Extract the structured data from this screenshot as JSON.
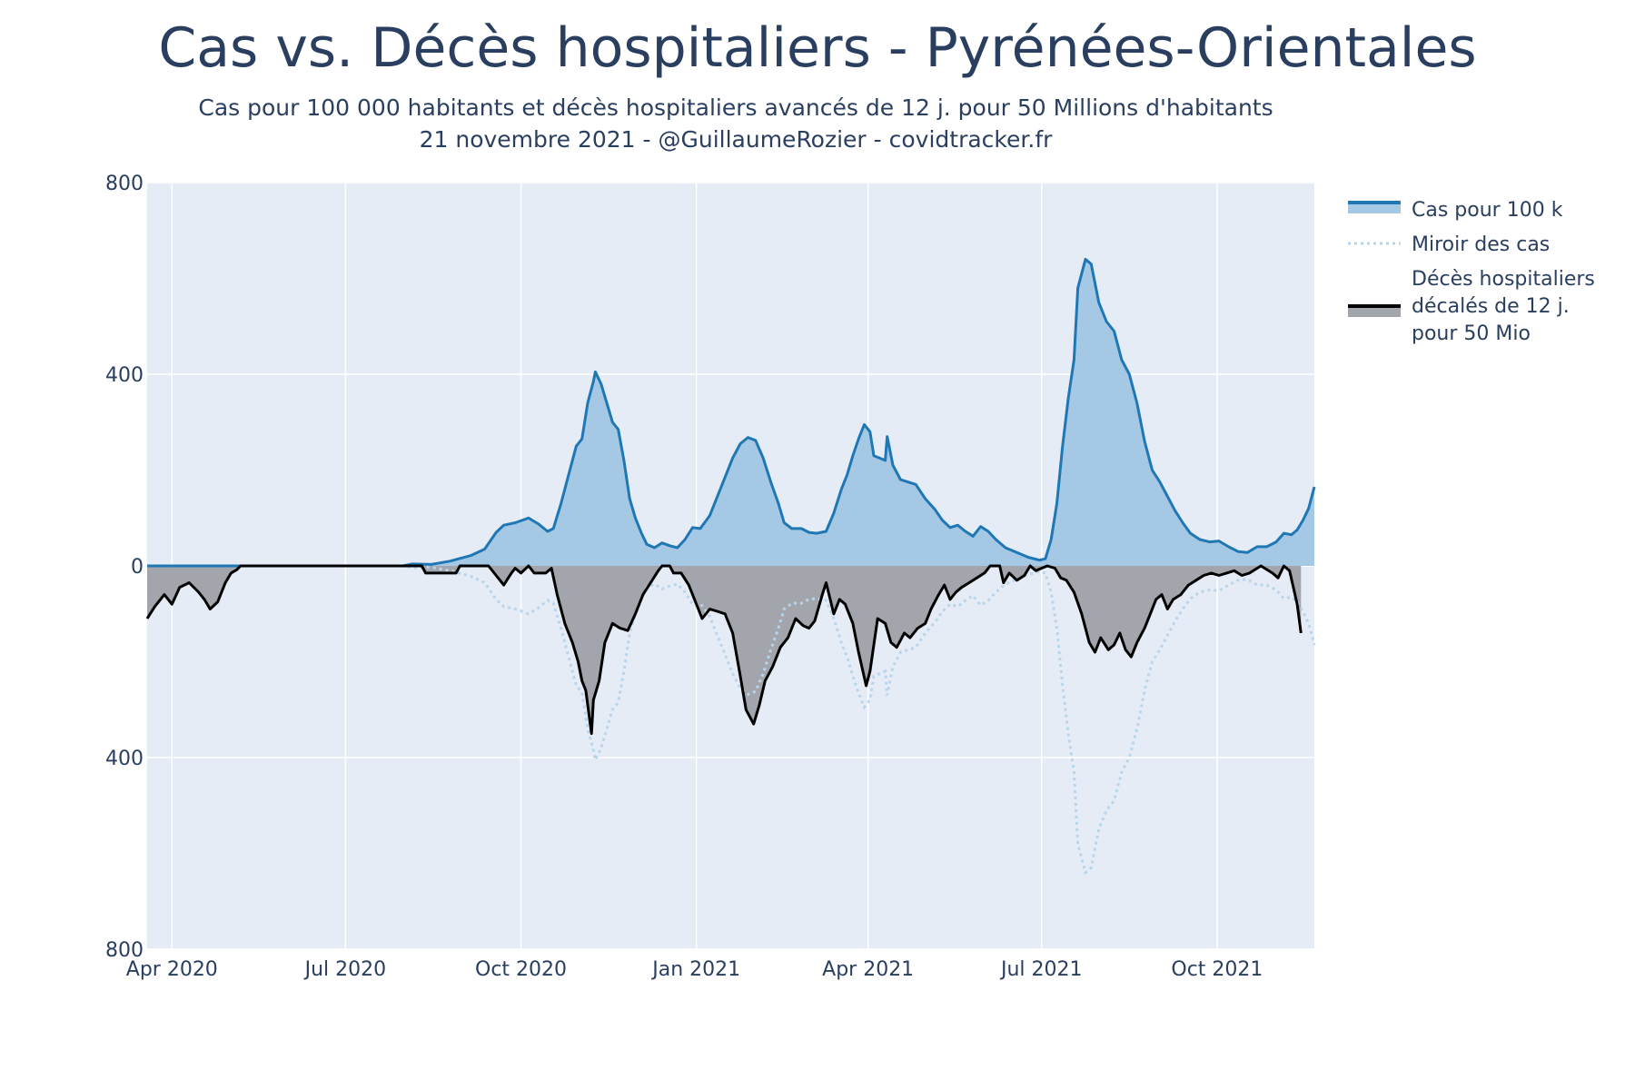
{
  "chart_data": {
    "type": "area",
    "title": "Cas vs. Décès hospitaliers - Pyrénées-Orientales",
    "subtitle": "Cas pour 100 000 habitants et décès hospitaliers avancés de 12 j. pour 50 Millions d'habitants",
    "subtitle2": "21 novembre 2021 - @GuillaumeRozier - covidtracker.fr",
    "xlabel": "",
    "ylabel": "",
    "ylim": [
      -800,
      800
    ],
    "y_ticks": [
      800,
      400,
      0,
      -400,
      -800
    ],
    "y_tick_labels": [
      "800",
      "400",
      "0",
      "400",
      "800"
    ],
    "x_ticks": [
      "2020-04-01",
      "2020-07-01",
      "2020-10-01",
      "2021-01-01",
      "2021-04-01",
      "2021-07-01",
      "2021-10-01"
    ],
    "x_tick_labels": [
      "Apr 2020",
      "Jul 2020",
      "Oct 2020",
      "Jan 2021",
      "Apr 2021",
      "Jul 2021",
      "Oct 2021"
    ],
    "xlim": [
      "2020-03-19",
      "2021-11-21"
    ],
    "legend_position": "right",
    "grid": true,
    "colors": {
      "cases_line": "#1f77b4",
      "cases_fill": "#a5c8e4",
      "mirror_line": "#b8d5ec",
      "deaths_line": "#000000",
      "deaths_fill": "#a2a5ab",
      "plot_bg": "#e5ecf6",
      "grid": "#ffffff"
    },
    "series": [
      {
        "name": "Cas pour 100 k",
        "style": "line+fill",
        "points": [
          [
            "2020-03-19",
            0
          ],
          [
            "2020-07-31",
            0
          ],
          [
            "2020-08-05",
            4
          ],
          [
            "2020-08-15",
            3
          ],
          [
            "2020-08-25",
            10
          ],
          [
            "2020-09-05",
            22
          ],
          [
            "2020-09-12",
            35
          ],
          [
            "2020-09-18",
            70
          ],
          [
            "2020-09-22",
            85
          ],
          [
            "2020-09-28",
            90
          ],
          [
            "2020-10-05",
            100
          ],
          [
            "2020-10-10",
            88
          ],
          [
            "2020-10-15",
            72
          ],
          [
            "2020-10-18",
            78
          ],
          [
            "2020-10-22",
            130
          ],
          [
            "2020-10-26",
            190
          ],
          [
            "2020-10-30",
            250
          ],
          [
            "2020-11-02",
            265
          ],
          [
            "2020-11-05",
            340
          ],
          [
            "2020-11-08",
            385
          ],
          [
            "2020-11-09",
            405
          ],
          [
            "2020-11-12",
            380
          ],
          [
            "2020-11-15",
            340
          ],
          [
            "2020-11-18",
            300
          ],
          [
            "2020-11-21",
            285
          ],
          [
            "2020-11-24",
            220
          ],
          [
            "2020-11-27",
            140
          ],
          [
            "2020-11-30",
            100
          ],
          [
            "2020-12-03",
            70
          ],
          [
            "2020-12-06",
            45
          ],
          [
            "2020-12-10",
            38
          ],
          [
            "2020-12-14",
            48
          ],
          [
            "2020-12-18",
            42
          ],
          [
            "2020-12-22",
            38
          ],
          [
            "2020-12-26",
            55
          ],
          [
            "2020-12-30",
            80
          ],
          [
            "2021-01-03",
            78
          ],
          [
            "2021-01-08",
            105
          ],
          [
            "2021-01-12",
            145
          ],
          [
            "2021-01-16",
            185
          ],
          [
            "2021-01-20",
            225
          ],
          [
            "2021-01-24",
            255
          ],
          [
            "2021-01-28",
            268
          ],
          [
            "2021-02-01",
            262
          ],
          [
            "2021-02-05",
            225
          ],
          [
            "2021-02-09",
            175
          ],
          [
            "2021-02-13",
            130
          ],
          [
            "2021-02-16",
            90
          ],
          [
            "2021-02-20",
            78
          ],
          [
            "2021-02-25",
            78
          ],
          [
            "2021-03-01",
            70
          ],
          [
            "2021-03-05",
            68
          ],
          [
            "2021-03-10",
            72
          ],
          [
            "2021-03-14",
            110
          ],
          [
            "2021-03-18",
            160
          ],
          [
            "2021-03-21",
            190
          ],
          [
            "2021-03-24",
            230
          ],
          [
            "2021-03-27",
            265
          ],
          [
            "2021-03-30",
            295
          ],
          [
            "2021-04-02",
            280
          ],
          [
            "2021-04-04",
            230
          ],
          [
            "2021-04-07",
            225
          ],
          [
            "2021-04-10",
            220
          ],
          [
            "2021-04-11",
            270
          ],
          [
            "2021-04-14",
            210
          ],
          [
            "2021-04-18",
            180
          ],
          [
            "2021-04-22",
            175
          ],
          [
            "2021-04-26",
            170
          ],
          [
            "2021-05-01",
            140
          ],
          [
            "2021-05-06",
            118
          ],
          [
            "2021-05-10",
            95
          ],
          [
            "2021-05-14",
            80
          ],
          [
            "2021-05-18",
            85
          ],
          [
            "2021-05-22",
            72
          ],
          [
            "2021-05-26",
            62
          ],
          [
            "2021-05-30",
            82
          ],
          [
            "2021-06-03",
            72
          ],
          [
            "2021-06-07",
            55
          ],
          [
            "2021-06-12",
            38
          ],
          [
            "2021-06-18",
            28
          ],
          [
            "2021-06-24",
            18
          ],
          [
            "2021-06-30",
            12
          ],
          [
            "2021-07-03",
            15
          ],
          [
            "2021-07-06",
            55
          ],
          [
            "2021-07-09",
            130
          ],
          [
            "2021-07-12",
            250
          ],
          [
            "2021-07-15",
            350
          ],
          [
            "2021-07-18",
            430
          ],
          [
            "2021-07-20",
            580
          ],
          [
            "2021-07-24",
            640
          ],
          [
            "2021-07-27",
            630
          ],
          [
            "2021-07-31",
            550
          ],
          [
            "2021-08-04",
            510
          ],
          [
            "2021-08-08",
            490
          ],
          [
            "2021-08-12",
            430
          ],
          [
            "2021-08-16",
            400
          ],
          [
            "2021-08-20",
            340
          ],
          [
            "2021-08-24",
            260
          ],
          [
            "2021-08-28",
            200
          ],
          [
            "2021-09-01",
            175
          ],
          [
            "2021-09-05",
            145
          ],
          [
            "2021-09-09",
            115
          ],
          [
            "2021-09-13",
            90
          ],
          [
            "2021-09-17",
            68
          ],
          [
            "2021-09-22",
            55
          ],
          [
            "2021-09-27",
            50
          ],
          [
            "2021-10-02",
            52
          ],
          [
            "2021-10-07",
            40
          ],
          [
            "2021-10-12",
            30
          ],
          [
            "2021-10-17",
            28
          ],
          [
            "2021-10-22",
            40
          ],
          [
            "2021-10-27",
            40
          ],
          [
            "2021-11-01",
            50
          ],
          [
            "2021-11-05",
            68
          ],
          [
            "2021-11-09",
            65
          ],
          [
            "2021-11-12",
            75
          ],
          [
            "2021-11-15",
            95
          ],
          [
            "2021-11-18",
            120
          ],
          [
            "2021-11-21",
            165
          ]
        ]
      },
      {
        "name": "Miroir des cas",
        "style": "dotted",
        "mirror_of": "Cas pour 100 k"
      },
      {
        "name": "Décès hospitaliers\ndécalés de 12 j.\npour 50 Mio",
        "style": "line+fill",
        "points": [
          [
            "2020-03-19",
            -110
          ],
          [
            "2020-03-23",
            -85
          ],
          [
            "2020-03-28",
            -60
          ],
          [
            "2020-04-01",
            -80
          ],
          [
            "2020-04-05",
            -45
          ],
          [
            "2020-04-10",
            -35
          ],
          [
            "2020-04-15",
            -55
          ],
          [
            "2020-04-18",
            -70
          ],
          [
            "2020-04-21",
            -90
          ],
          [
            "2020-04-25",
            -75
          ],
          [
            "2020-04-29",
            -35
          ],
          [
            "2020-05-02",
            -15
          ],
          [
            "2020-05-05",
            -8
          ],
          [
            "2020-05-07",
            0
          ],
          [
            "2020-08-10",
            0
          ],
          [
            "2020-08-12",
            -15
          ],
          [
            "2020-08-28",
            -15
          ],
          [
            "2020-08-30",
            0
          ],
          [
            "2020-09-14",
            0
          ],
          [
            "2020-09-18",
            -20
          ],
          [
            "2020-09-22",
            -40
          ],
          [
            "2020-09-26",
            -15
          ],
          [
            "2020-09-28",
            -5
          ],
          [
            "2020-10-01",
            -15
          ],
          [
            "2020-10-05",
            0
          ],
          [
            "2020-10-08",
            -15
          ],
          [
            "2020-10-14",
            -15
          ],
          [
            "2020-10-17",
            -5
          ],
          [
            "2020-10-20",
            -60
          ],
          [
            "2020-10-24",
            -120
          ],
          [
            "2020-10-28",
            -160
          ],
          [
            "2020-10-31",
            -200
          ],
          [
            "2020-11-02",
            -240
          ],
          [
            "2020-11-04",
            -260
          ],
          [
            "2020-11-07",
            -350
          ],
          [
            "2020-11-08",
            -280
          ],
          [
            "2020-11-11",
            -240
          ],
          [
            "2020-11-14",
            -160
          ],
          [
            "2020-11-18",
            -120
          ],
          [
            "2020-11-22",
            -130
          ],
          [
            "2020-11-26",
            -135
          ],
          [
            "2020-11-30",
            -100
          ],
          [
            "2020-12-04",
            -60
          ],
          [
            "2020-12-08",
            -35
          ],
          [
            "2020-12-12",
            -10
          ],
          [
            "2020-12-14",
            0
          ],
          [
            "2020-12-18",
            0
          ],
          [
            "2020-12-20",
            -15
          ],
          [
            "2020-12-24",
            -15
          ],
          [
            "2020-12-28",
            -40
          ],
          [
            "2021-01-01",
            -80
          ],
          [
            "2021-01-04",
            -110
          ],
          [
            "2021-01-08",
            -90
          ],
          [
            "2021-01-12",
            -95
          ],
          [
            "2021-01-16",
            -100
          ],
          [
            "2021-01-20",
            -140
          ],
          [
            "2021-01-24",
            -230
          ],
          [
            "2021-01-27",
            -300
          ],
          [
            "2021-01-31",
            -330
          ],
          [
            "2021-02-03",
            -290
          ],
          [
            "2021-02-06",
            -240
          ],
          [
            "2021-02-10",
            -210
          ],
          [
            "2021-02-14",
            -170
          ],
          [
            "2021-02-18",
            -150
          ],
          [
            "2021-02-22",
            -110
          ],
          [
            "2021-02-26",
            -125
          ],
          [
            "2021-03-01",
            -130
          ],
          [
            "2021-03-04",
            -115
          ],
          [
            "2021-03-08",
            -60
          ],
          [
            "2021-03-10",
            -35
          ],
          [
            "2021-03-14",
            -100
          ],
          [
            "2021-03-17",
            -70
          ],
          [
            "2021-03-20",
            -80
          ],
          [
            "2021-03-24",
            -120
          ],
          [
            "2021-03-27",
            -180
          ],
          [
            "2021-03-31",
            -250
          ],
          [
            "2021-04-02",
            -220
          ],
          [
            "2021-04-06",
            -110
          ],
          [
            "2021-04-10",
            -120
          ],
          [
            "2021-04-13",
            -160
          ],
          [
            "2021-04-16",
            -170
          ],
          [
            "2021-04-20",
            -140
          ],
          [
            "2021-04-23",
            -150
          ],
          [
            "2021-04-27",
            -130
          ],
          [
            "2021-05-01",
            -120
          ],
          [
            "2021-05-04",
            -90
          ],
          [
            "2021-05-08",
            -60
          ],
          [
            "2021-05-11",
            -40
          ],
          [
            "2021-05-14",
            -70
          ],
          [
            "2021-05-17",
            -55
          ],
          [
            "2021-05-20",
            -45
          ],
          [
            "2021-05-24",
            -35
          ],
          [
            "2021-05-28",
            -25
          ],
          [
            "2021-06-01",
            -15
          ],
          [
            "2021-06-04",
            0
          ],
          [
            "2021-06-09",
            0
          ],
          [
            "2021-06-11",
            -35
          ],
          [
            "2021-06-14",
            -15
          ],
          [
            "2021-06-18",
            -30
          ],
          [
            "2021-06-22",
            -20
          ],
          [
            "2021-06-25",
            0
          ],
          [
            "2021-06-28",
            -10
          ],
          [
            "2021-07-01",
            -5
          ],
          [
            "2021-07-04",
            0
          ],
          [
            "2021-07-08",
            -5
          ],
          [
            "2021-07-11",
            -25
          ],
          [
            "2021-07-14",
            -30
          ],
          [
            "2021-07-18",
            -55
          ],
          [
            "2021-07-22",
            -100
          ],
          [
            "2021-07-26",
            -160
          ],
          [
            "2021-07-29",
            -180
          ],
          [
            "2021-08-01",
            -150
          ],
          [
            "2021-08-05",
            -175
          ],
          [
            "2021-08-08",
            -165
          ],
          [
            "2021-08-11",
            -140
          ],
          [
            "2021-08-14",
            -175
          ],
          [
            "2021-08-17",
            -190
          ],
          [
            "2021-08-20",
            -160
          ],
          [
            "2021-08-24",
            -130
          ],
          [
            "2021-08-27",
            -100
          ],
          [
            "2021-08-30",
            -70
          ],
          [
            "2021-09-02",
            -60
          ],
          [
            "2021-09-05",
            -90
          ],
          [
            "2021-09-08",
            -70
          ],
          [
            "2021-09-12",
            -60
          ],
          [
            "2021-09-16",
            -40
          ],
          [
            "2021-09-20",
            -30
          ],
          [
            "2021-09-24",
            -20
          ],
          [
            "2021-09-28",
            -15
          ],
          [
            "2021-10-02",
            -20
          ],
          [
            "2021-10-06",
            -15
          ],
          [
            "2021-10-10",
            -10
          ],
          [
            "2021-10-14",
            -20
          ],
          [
            "2021-10-18",
            -15
          ],
          [
            "2021-10-22",
            -5
          ],
          [
            "2021-10-24",
            0
          ],
          [
            "2021-10-30",
            -15
          ],
          [
            "2021-11-02",
            -25
          ],
          [
            "2021-11-05",
            0
          ],
          [
            "2021-11-08",
            -10
          ],
          [
            "2021-11-12",
            -80
          ],
          [
            "2021-11-14",
            -140
          ]
        ]
      }
    ]
  }
}
